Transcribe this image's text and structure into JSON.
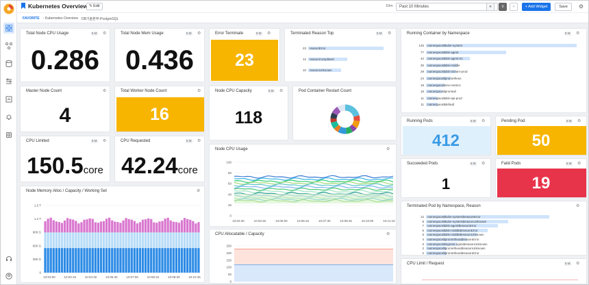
{
  "header": {
    "title": "Kubernetes Overview",
    "edit_label": "Edit",
    "favorite": "FAVORITE",
    "breadcrumb1": "Kubernetes Overview",
    "breadcrumb2": "DB기술본부-PostgreSQL"
  },
  "toolbar": {
    "time_short": "10m",
    "time_label": "Past 10 Minutes",
    "add_widget": "Add Widget",
    "save": "Save"
  },
  "tag": "5 M",
  "widgets": {
    "node_cpu": {
      "title": "Total Node CPU Usage",
      "value": "0.286"
    },
    "node_mem": {
      "title": "Total Node Mem Usage",
      "value": "0.436"
    },
    "error_term": {
      "title": "Error Terminate",
      "value": "23"
    },
    "term_reason": {
      "title": "Terminated Reason Top",
      "values": [
        23,
        12,
        10
      ],
      "labels": [
        "reasonError",
        "reasonCompleted",
        "reasonUnknown"
      ]
    },
    "master_nodes": {
      "title": "Master Node Count",
      "value": "4"
    },
    "worker_nodes": {
      "title": "Total Worker Node Count",
      "value": "16"
    },
    "node_cpu_cap": {
      "title": "Node CPU Capacity",
      "value": "118"
    },
    "restart": {
      "title": "Pod Container Restart Count"
    },
    "cpu_limited": {
      "title": "CPU Limited",
      "value": "150.5",
      "unit": "core"
    },
    "cpu_requested": {
      "title": "CPU Requested",
      "value": "42.24",
      "unit": "core"
    },
    "node_cpu_usage": {
      "title": "Node CPU Usage",
      "yticks": [
        "100",
        "80",
        "60",
        "40",
        "20",
        "0"
      ],
      "xticks": [
        "10:02:30",
        "10:03:45",
        "10:05:00",
        "10:06:15",
        "10:07:30",
        "10:08:45",
        "10:10:00",
        "10:11:15"
      ]
    },
    "mem_alloc": {
      "title": "Node Memory Alloc / Capacity / Working Set",
      "yticks": [
        "1.5 T",
        "1.2 T",
        "900 G",
        "600 G",
        "300 G",
        "0"
      ],
      "xticks": [
        "10:02:00",
        "10:03:15",
        "10:04:30",
        "10:05:45",
        "10:07:00",
        "10:08:15",
        "10:09:30",
        "10:10:45"
      ]
    },
    "cpu_alloc": {
      "title": "CPU Allocatable / Capacity",
      "yticks": [
        "250",
        "200",
        "150",
        "100",
        "50",
        "0"
      ]
    },
    "running_container": {
      "title": "Running Container by Namespace",
      "values": [
        145,
        77,
        42,
        30,
        29,
        24,
        18,
        16,
        11,
        11
      ],
      "labels": [
        "namespace$kube-system",
        "namespace$dsk-agent",
        "namespace$dsk-agent-ini",
        "namespace$dsk-middle",
        "namespace$dsk-stream-prod",
        "namespace$prometheus",
        "namespace$sns-metrics",
        "namespace$promtail",
        "namespace$dsk-api-prod",
        "namespace$default"
      ]
    },
    "running_pods": {
      "title": "Running Pods",
      "value": "412"
    },
    "pending_pod": {
      "title": "Pending Pod",
      "value": "50"
    },
    "succeeded_pods": {
      "title": "Succeeded Pods",
      "value": "1"
    },
    "failed_pods": {
      "title": "Faild Pods",
      "value": "19"
    },
    "term_pod_ns": {
      "title": "Terminated Pod by Namespace, Reason",
      "values": [
        12,
        8,
        7,
        6,
        5,
        4,
        3,
        2,
        2
      ],
      "labels": [
        "namespace$kube-system$reasonError",
        "namespace$kube-system$reasonUnknown",
        "namespace$dsk-agent$reasonError",
        "namespace$dsk-middle$reasonError",
        "namespace$dsk-middle$reasonUnknown",
        "namespace$prometheus$reasonError",
        "namespace$ingress-nginx$reasonUnknown",
        "namespace$prometheus$reasonUnknown",
        "namespace$prometheus$reasonError"
      ]
    },
    "cpu_limit_req": {
      "title": "CPU Limit / Request"
    }
  }
}
